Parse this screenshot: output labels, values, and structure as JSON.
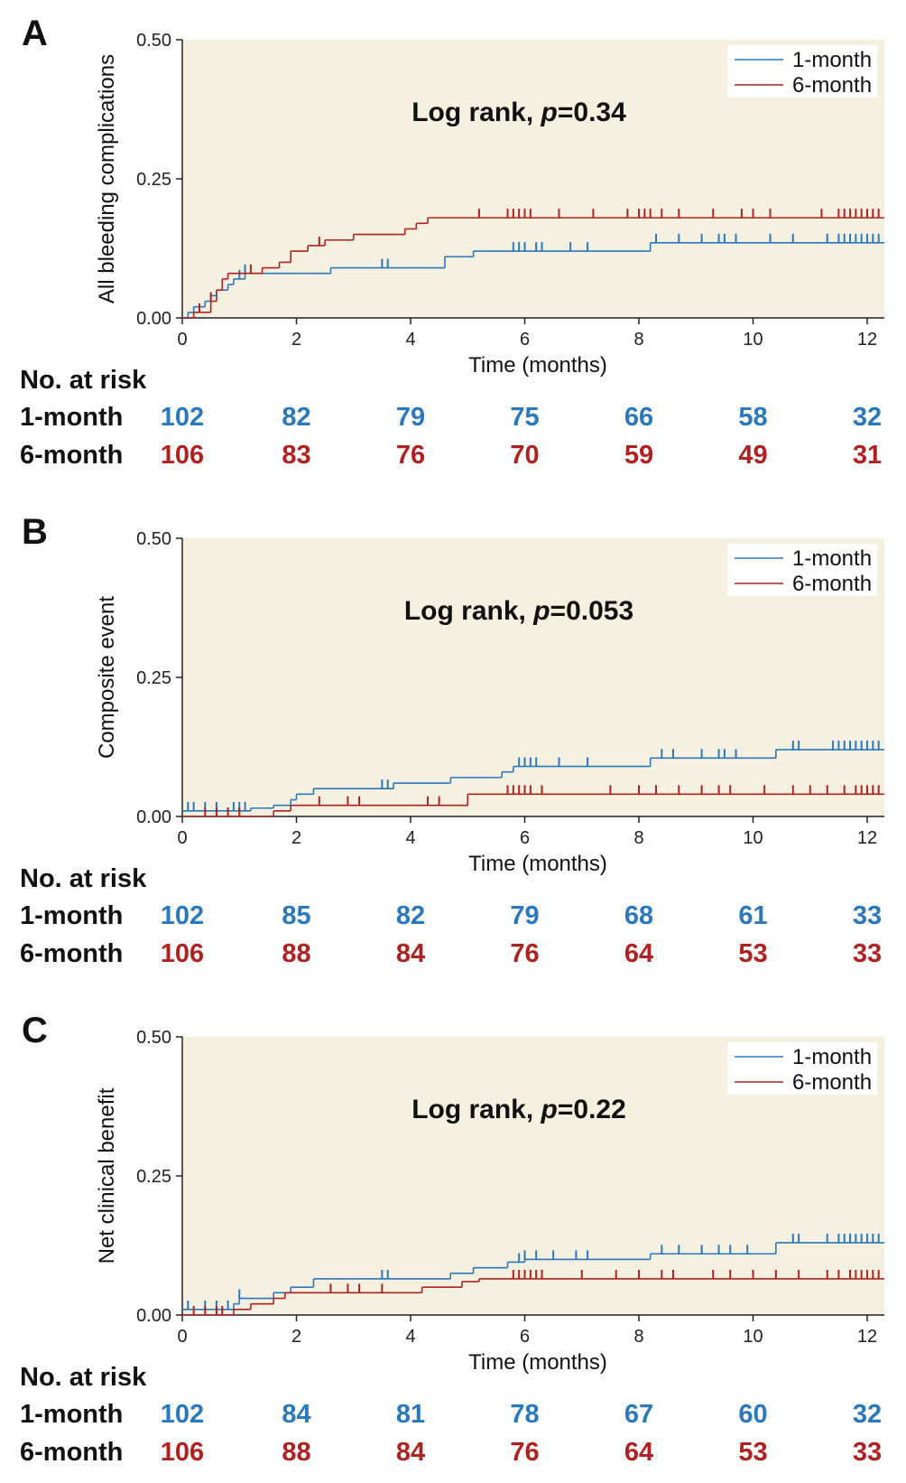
{
  "chart_data": [
    {
      "type": "line",
      "panel": "A",
      "ylabel": "All bleeding complications",
      "xlabel": "Time (months)",
      "annotation": [
        "Log rank, ",
        "p",
        "=0.34"
      ],
      "xlim": [
        0,
        12.3
      ],
      "ylim": [
        0,
        0.5
      ],
      "xticks": [
        0,
        2,
        4,
        6,
        8,
        10,
        12
      ],
      "yticks": [
        {
          "value": 0,
          "label": "0.00"
        },
        {
          "value": 0.25,
          "label": "0.25"
        },
        {
          "value": 0.5,
          "label": "0.50"
        }
      ],
      "series": [
        {
          "name": "1-month",
          "color": "#2b78bd",
          "x": [
            0,
            0.1,
            0.2,
            0.4,
            0.5,
            0.6,
            0.8,
            0.9,
            1.1,
            2.6,
            4.6,
            5.1,
            8.2
          ],
          "values": [
            0,
            0.01,
            0.02,
            0.03,
            0.04,
            0.05,
            0.06,
            0.07,
            0.08,
            0.09,
            0.11,
            0.12,
            0.135
          ],
          "censor_x": [
            1.0,
            1.1,
            3.5,
            3.6,
            5.8,
            5.9,
            6.0,
            6.2,
            6.3,
            6.8,
            7.1,
            8.3,
            8.7,
            9.1,
            9.4,
            9.5,
            9.7,
            10.3,
            10.7,
            11.3,
            11.5,
            11.6,
            11.7,
            11.8,
            11.9,
            12.0,
            12.1,
            12.2
          ]
        },
        {
          "name": "6-month",
          "color": "#b02222",
          "x": [
            0,
            0.2,
            0.5,
            0.6,
            0.7,
            0.8,
            1.4,
            1.7,
            1.9,
            2.2,
            2.5,
            3.0,
            3.9,
            4.1,
            4.3
          ],
          "values": [
            0,
            0.01,
            0.03,
            0.05,
            0.07,
            0.08,
            0.09,
            0.1,
            0.12,
            0.13,
            0.14,
            0.15,
            0.16,
            0.17,
            0.18
          ],
          "censor_x": [
            0.3,
            0.5,
            1.2,
            2.4,
            5.2,
            5.7,
            5.8,
            5.9,
            6.0,
            6.1,
            6.6,
            7.2,
            7.8,
            8.0,
            8.1,
            8.2,
            8.4,
            8.7,
            9.3,
            9.8,
            10.0,
            10.3,
            11.2,
            11.5,
            11.6,
            11.7,
            11.8,
            11.9,
            12.0,
            12.1,
            12.2
          ]
        }
      ],
      "risk_table": {
        "label": "No. at risk",
        "rows": [
          {
            "name": "1-month",
            "values": [
              102,
              82,
              79,
              75,
              66,
              58,
              32
            ]
          },
          {
            "name": "6-month",
            "values": [
              106,
              83,
              76,
              70,
              59,
              49,
              31
            ]
          }
        ]
      }
    },
    {
      "type": "line",
      "panel": "B",
      "ylabel": "Composite event",
      "xlabel": "Time (months)",
      "annotation": [
        "Log rank, ",
        "p",
        "=0.053"
      ],
      "xlim": [
        0,
        12.3
      ],
      "ylim": [
        0,
        0.5
      ],
      "xticks": [
        0,
        2,
        4,
        6,
        8,
        10,
        12
      ],
      "yticks": [
        {
          "value": 0,
          "label": "0.00"
        },
        {
          "value": 0.25,
          "label": "0.25"
        },
        {
          "value": 0.5,
          "label": "0.50"
        }
      ],
      "series": [
        {
          "name": "1-month",
          "color": "#2b78bd",
          "x": [
            0,
            1.2,
            1.6,
            1.9,
            2.0,
            2.3,
            3.7,
            4.7,
            5.6,
            5.8,
            8.2,
            10.4
          ],
          "values": [
            0.01,
            0.015,
            0.02,
            0.03,
            0.04,
            0.05,
            0.06,
            0.07,
            0.08,
            0.09,
            0.105,
            0.12
          ],
          "censor_x": [
            0.1,
            0.2,
            0.4,
            0.6,
            0.9,
            1.0,
            1.1,
            3.5,
            3.6,
            5.9,
            6.0,
            6.1,
            6.2,
            6.6,
            7.1,
            8.4,
            8.6,
            9.1,
            9.4,
            9.5,
            9.7,
            10.7,
            10.8,
            11.4,
            11.5,
            11.6,
            11.7,
            11.8,
            11.9,
            12.0,
            12.1,
            12.2
          ]
        },
        {
          "name": "6-month",
          "color": "#b02222",
          "x": [
            0,
            1.6,
            1.9,
            5.0
          ],
          "values": [
            0,
            0.01,
            0.02,
            0.04
          ],
          "censor_x": [
            0.4,
            0.6,
            0.8,
            1.0,
            2.4,
            2.9,
            3.1,
            4.3,
            4.5,
            5.7,
            5.8,
            5.9,
            6.0,
            6.1,
            6.3,
            7.5,
            8.0,
            8.3,
            8.7,
            9.1,
            9.4,
            9.6,
            10.2,
            10.7,
            11.0,
            11.3,
            11.6,
            11.8,
            11.9,
            12.0,
            12.1,
            12.2
          ]
        }
      ],
      "risk_table": {
        "label": "No. at risk",
        "rows": [
          {
            "name": "1-month",
            "values": [
              102,
              85,
              82,
              79,
              68,
              61,
              33
            ]
          },
          {
            "name": "6-month",
            "values": [
              106,
              88,
              84,
              76,
              64,
              53,
              33
            ]
          }
        ]
      }
    },
    {
      "type": "line",
      "panel": "C",
      "ylabel": "Net clinical benefit",
      "xlabel": "Time (months)",
      "annotation": [
        "Log rank, ",
        "p",
        "=0.22"
      ],
      "xlim": [
        0,
        12.3
      ],
      "ylim": [
        0,
        0.5
      ],
      "xticks": [
        0,
        2,
        4,
        6,
        8,
        10,
        12
      ],
      "yticks": [
        {
          "value": 0,
          "label": "0.00"
        },
        {
          "value": 0.25,
          "label": "0.25"
        },
        {
          "value": 0.5,
          "label": "0.50"
        }
      ],
      "series": [
        {
          "name": "1-month",
          "color": "#2b78bd",
          "x": [
            0,
            0.9,
            1.0,
            1.6,
            1.9,
            2.3,
            4.7,
            5.1,
            5.7,
            6.0,
            8.2,
            10.4
          ],
          "values": [
            0.01,
            0.02,
            0.03,
            0.04,
            0.05,
            0.065,
            0.075,
            0.085,
            0.095,
            0.1,
            0.11,
            0.13
          ],
          "censor_x": [
            0.1,
            0.4,
            0.6,
            0.8,
            1.0,
            3.5,
            3.6,
            5.9,
            6.0,
            6.2,
            6.5,
            6.9,
            7.1,
            8.4,
            8.7,
            9.1,
            9.4,
            9.6,
            9.9,
            10.7,
            10.8,
            11.3,
            11.5,
            11.6,
            11.7,
            11.8,
            11.9,
            12.0,
            12.1,
            12.2
          ]
        },
        {
          "name": "6-month",
          "color": "#b02222",
          "x": [
            0,
            0.9,
            1.2,
            1.6,
            1.8,
            4.2,
            4.9,
            5.2
          ],
          "values": [
            0,
            0.01,
            0.02,
            0.03,
            0.04,
            0.05,
            0.06,
            0.065
          ],
          "censor_x": [
            0.2,
            0.4,
            0.6,
            0.7,
            2.6,
            2.9,
            3.1,
            3.5,
            5.8,
            5.9,
            6.0,
            6.1,
            6.2,
            6.3,
            7.0,
            7.6,
            8.0,
            8.4,
            8.6,
            9.3,
            9.6,
            10.0,
            10.4,
            10.8,
            11.3,
            11.5,
            11.7,
            11.8,
            11.9,
            12.0,
            12.1,
            12.2
          ]
        }
      ],
      "risk_table": {
        "label": "No. at risk",
        "rows": [
          {
            "name": "1-month",
            "values": [
              102,
              84,
              81,
              78,
              67,
              60,
              32
            ]
          },
          {
            "name": "6-month",
            "values": [
              106,
              88,
              84,
              76,
              64,
              53,
              33
            ]
          }
        ]
      }
    }
  ]
}
